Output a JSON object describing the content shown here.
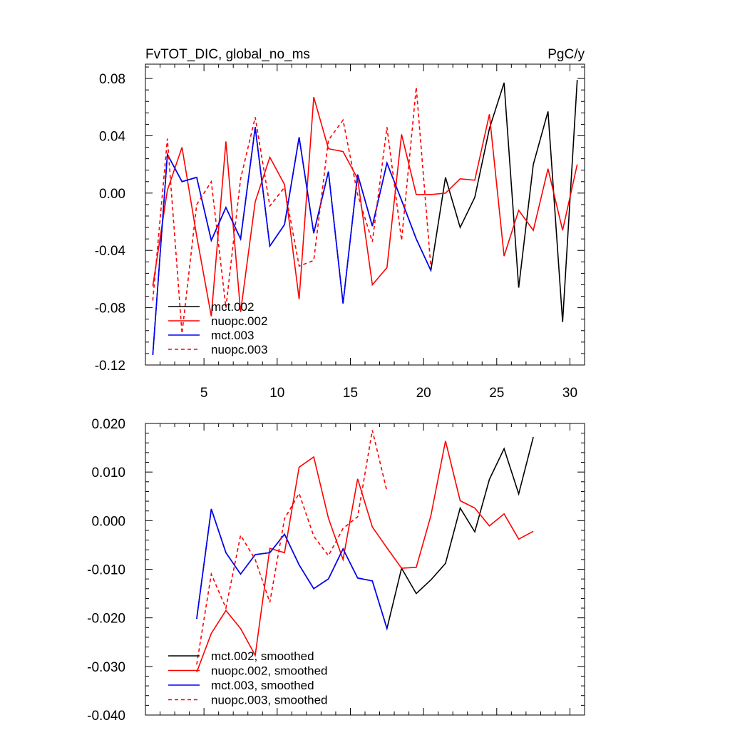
{
  "chart_data": [
    {
      "type": "line",
      "title": "FvTOT_DIC, global_no_ms",
      "units": "PgC/y",
      "xlim": [
        1,
        31
      ],
      "ylim": [
        -0.12,
        0.09
      ],
      "x_ticks": [
        5,
        10,
        15,
        20,
        25,
        30
      ],
      "x_tick_labels": [
        "5",
        "10",
        "15",
        "20",
        "25",
        "30"
      ],
      "y_ticks": [
        -0.12,
        -0.08,
        -0.04,
        0.0,
        0.04,
        0.08
      ],
      "y_tick_labels": [
        "-0.12",
        "-0.08",
        "-0.04",
        "0.00",
        "0.04",
        "0.08"
      ],
      "legend_position": "bottom-left",
      "series": [
        {
          "name": "mct.002",
          "color": "#000000",
          "dash": "solid",
          "x": [
            1.5,
            2.5,
            3.5,
            4.5,
            5.5,
            6.5,
            7.5,
            8.5,
            9.5,
            10.5,
            11.5,
            12.5,
            13.5,
            14.5,
            15.5,
            16.5,
            17.5,
            18.5,
            19.5,
            20.5,
            21.5,
            22.5,
            23.5,
            24.5,
            25.5,
            26.5,
            27.5,
            28.5,
            29.5,
            30.5
          ],
          "y": [
            -0.113,
            0.027,
            0.008,
            0.011,
            -0.033,
            -0.01,
            -0.032,
            0.046,
            -0.037,
            -0.022,
            0.039,
            -0.028,
            0.015,
            -0.077,
            0.013,
            -0.023,
            0.021,
            -0.005,
            -0.032,
            -0.054,
            0.011,
            -0.024,
            -0.003,
            0.045,
            0.077,
            -0.066,
            0.02,
            0.057,
            -0.09,
            0.079
          ]
        },
        {
          "name": "nuopc.002",
          "color": "#ff0000",
          "dash": "solid",
          "x": [
            1.5,
            2.5,
            3.5,
            4.5,
            5.5,
            6.5,
            7.5,
            8.5,
            9.5,
            10.5,
            11.5,
            12.5,
            13.5,
            14.5,
            15.5,
            16.5,
            17.5,
            18.5,
            19.5,
            20.5,
            21.5,
            22.5,
            23.5,
            24.5,
            25.5,
            26.5,
            27.5,
            28.5,
            29.5,
            30.5
          ],
          "y": [
            -0.065,
            0.002,
            0.032,
            -0.03,
            -0.086,
            0.036,
            -0.083,
            -0.006,
            0.025,
            0.006,
            -0.074,
            0.067,
            0.031,
            0.029,
            0.01,
            -0.064,
            -0.052,
            0.041,
            -0.001,
            -0.001,
            0.0,
            0.01,
            0.009,
            0.055,
            -0.044,
            -0.012,
            -0.026,
            0.017,
            -0.026,
            0.02
          ]
        },
        {
          "name": "mct.003",
          "color": "#0000ff",
          "dash": "solid",
          "x": [
            1.5,
            2.5,
            3.5,
            4.5,
            5.5,
            6.5,
            7.5,
            8.5,
            9.5,
            10.5,
            11.5,
            12.5,
            13.5,
            14.5,
            15.5,
            16.5,
            17.5,
            18.5,
            19.5,
            20.5
          ],
          "y": [
            -0.113,
            0.027,
            0.008,
            0.011,
            -0.033,
            -0.01,
            -0.032,
            0.046,
            -0.037,
            -0.022,
            0.039,
            -0.028,
            0.015,
            -0.077,
            0.013,
            -0.023,
            0.021,
            -0.005,
            -0.032,
            -0.054
          ]
        },
        {
          "name": "nuopc.003",
          "color": "#ff0000",
          "dash": "dashed",
          "x": [
            1.5,
            2.5,
            3.5,
            4.5,
            5.5,
            6.5,
            7.5,
            8.5,
            9.5,
            10.5,
            11.5,
            12.5,
            13.5,
            14.5,
            15.5,
            16.5,
            17.5,
            18.5,
            19.5,
            20.5
          ],
          "y": [
            -0.075,
            0.038,
            -0.098,
            -0.008,
            0.008,
            -0.08,
            0.01,
            0.053,
            -0.009,
            0.004,
            -0.051,
            -0.047,
            0.037,
            0.051,
            -0.001,
            -0.034,
            0.046,
            -0.033,
            0.074,
            -0.052
          ]
        }
      ]
    },
    {
      "type": "line",
      "xlim": [
        1,
        31
      ],
      "ylim": [
        -0.04,
        0.02
      ],
      "x_ticks": [
        5,
        10,
        15,
        20,
        25,
        30
      ],
      "y_ticks": [
        -0.04,
        -0.03,
        -0.02,
        -0.01,
        0.0,
        0.01,
        0.02
      ],
      "y_tick_labels": [
        "-0.040",
        "-0.030",
        "-0.020",
        "-0.010",
        "0.000",
        "0.010",
        "0.020"
      ],
      "legend_position": "bottom-left",
      "series": [
        {
          "name": "mct.002, smoothed",
          "color": "#000000",
          "dash": "solid",
          "x": [
            4.5,
            5.5,
            6.5,
            7.5,
            8.5,
            9.5,
            10.5,
            11.5,
            12.5,
            13.5,
            14.5,
            15.5,
            16.5,
            17.5,
            18.5,
            19.5,
            20.5,
            21.5,
            22.5,
            23.5,
            24.5,
            25.5,
            26.5,
            27.5
          ],
          "y": [
            -0.0202,
            0.0024,
            -0.0066,
            -0.011,
            -0.007,
            -0.0066,
            -0.0028,
            -0.0091,
            -0.014,
            -0.012,
            -0.0058,
            -0.0118,
            -0.0124,
            -0.0222,
            -0.0098,
            -0.015,
            -0.0122,
            -0.0088,
            0.0026,
            -0.0023,
            0.0085,
            0.0148,
            0.0055,
            0.0172
          ]
        },
        {
          "name": "nuopc.002, smoothed",
          "color": "#ff0000",
          "dash": "solid",
          "x": [
            4.5,
            5.5,
            6.5,
            7.5,
            8.5,
            9.5,
            10.5,
            11.5,
            12.5,
            13.5,
            14.5,
            15.5,
            16.5,
            17.5,
            18.5,
            19.5,
            20.5,
            21.5,
            22.5,
            23.5,
            24.5,
            25.5,
            26.5,
            27.5
          ],
          "y": [
            -0.0312,
            -0.0232,
            -0.0185,
            -0.0222,
            -0.0277,
            -0.0057,
            -0.0066,
            0.011,
            0.0131,
            0.0005,
            -0.008,
            0.0086,
            -0.0013,
            -0.0056,
            -0.0098,
            -0.0096,
            0.001,
            0.0164,
            0.0041,
            0.0026,
            -0.0011,
            0.0014,
            -0.0038,
            -0.0022
          ]
        },
        {
          "name": "mct.003, smoothed",
          "color": "#0000ff",
          "dash": "solid",
          "x": [
            4.5,
            5.5,
            6.5,
            7.5,
            8.5,
            9.5,
            10.5,
            11.5,
            12.5,
            13.5,
            14.5,
            15.5,
            16.5,
            17.5
          ],
          "y": [
            -0.0202,
            0.0024,
            -0.0066,
            -0.011,
            -0.007,
            -0.0066,
            -0.0028,
            -0.0091,
            -0.014,
            -0.012,
            -0.0058,
            -0.0118,
            -0.0124,
            -0.0222
          ]
        },
        {
          "name": "nuopc.003, smoothed",
          "color": "#ff0000",
          "dash": "dashed",
          "x": [
            4.5,
            5.5,
            6.5,
            7.5,
            8.5,
            9.5,
            10.5,
            11.5,
            12.5,
            13.5,
            14.5,
            15.5,
            16.5,
            17.5
          ],
          "y": [
            -0.0296,
            -0.011,
            -0.018,
            -0.003,
            -0.008,
            -0.0168,
            0.0004,
            0.0056,
            -0.0032,
            -0.0072,
            -0.0016,
            0.0008,
            0.0186,
            0.006
          ]
        }
      ]
    }
  ]
}
